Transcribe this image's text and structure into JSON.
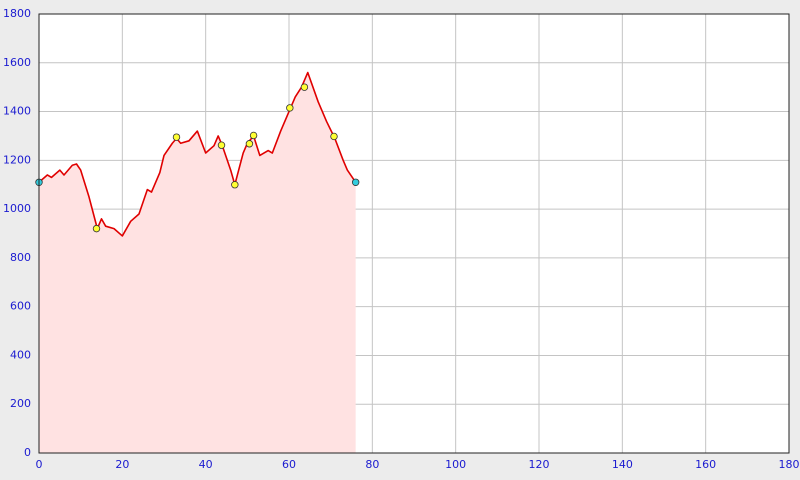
{
  "chart_data": {
    "type": "area",
    "x": [
      0,
      2,
      3,
      5,
      6,
      8,
      9,
      10,
      12,
      14,
      15,
      16,
      18,
      20,
      22,
      24,
      26,
      27,
      29,
      30,
      32,
      33,
      34,
      36,
      38,
      40,
      42,
      43,
      44,
      46,
      47,
      49,
      50,
      51.5,
      53,
      55,
      56,
      58,
      60,
      61.5,
      63,
      64.5,
      67,
      69,
      71,
      73,
      74,
      76
    ],
    "values": [
      1110,
      1140,
      1130,
      1160,
      1140,
      1180,
      1185,
      1160,
      1050,
      920,
      960,
      930,
      920,
      890,
      950,
      980,
      1080,
      1070,
      1150,
      1220,
      1270,
      1290,
      1270,
      1280,
      1320,
      1230,
      1260,
      1300,
      1260,
      1160,
      1100,
      1230,
      1270,
      1300,
      1220,
      1240,
      1230,
      1320,
      1400,
      1460,
      1500,
      1560,
      1440,
      1360,
      1290,
      1200,
      1160,
      1110
    ],
    "color": "#e00000",
    "fill_color": "#ffe2e2",
    "waypoints": {
      "x": [
        13.8,
        33,
        43.8,
        47,
        50.5,
        51.5,
        60.2,
        63.7,
        70.8
      ],
      "values": [
        920,
        1295,
        1262,
        1100,
        1268,
        1302,
        1415,
        1500,
        1298
      ],
      "color": "#ffff33"
    },
    "endpoints": {
      "x": [
        0,
        76
      ],
      "values": [
        1110,
        1110
      ],
      "color": "#33ccdd"
    },
    "xlim": [
      0,
      180
    ],
    "xticks": [
      0,
      20,
      40,
      60,
      80,
      100,
      120,
      140,
      160,
      180
    ],
    "ylim": [
      0,
      1800
    ],
    "yticks": [
      0,
      200,
      400,
      600,
      800,
      1000,
      1200,
      1400,
      1600,
      1800
    ],
    "grid": true
  }
}
